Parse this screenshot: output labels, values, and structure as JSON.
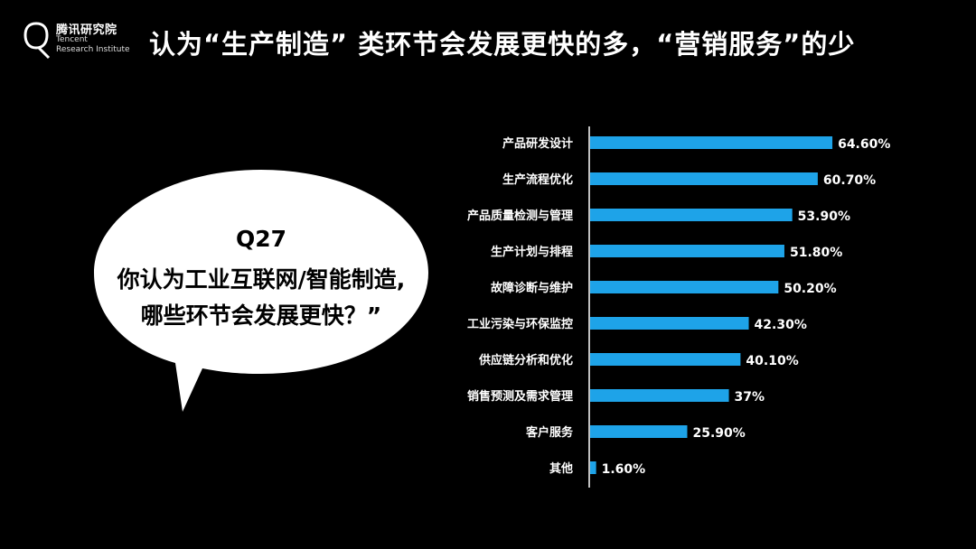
{
  "brand": {
    "name_cn": "腾讯研究院",
    "name_en_line1": "Tencent",
    "name_en_line2": "Research Institute"
  },
  "title": "认为“生产制造” 类环节会发展更快的多，“营销服务”的少",
  "question": {
    "id": "Q27",
    "line1": "你认为工业互联网/智能制造,",
    "line2": "哪些环节会发展更快？”"
  },
  "colors": {
    "background": "#000000",
    "bar": "#1ea3e8",
    "text": "#ffffff",
    "bubble": "#ffffff"
  },
  "chart_data": {
    "type": "bar",
    "orientation": "horizontal",
    "categories": [
      "产品研发设计",
      "生产流程优化",
      "产品质量检测与管理",
      "生产计划与排程",
      "故障诊断与维护",
      "工业污染与环保监控",
      "供应链分析和优化",
      "销售预测及需求管理",
      "客户服务",
      "其他"
    ],
    "values": [
      64.6,
      60.7,
      53.9,
      51.8,
      50.2,
      42.3,
      40.1,
      37,
      25.9,
      1.6
    ],
    "value_labels": [
      "64.60%",
      "60.70%",
      "53.90%",
      "51.80%",
      "50.20%",
      "42.30%",
      "40.10%",
      "37%",
      "25.90%",
      "1.60%"
    ],
    "xlim": [
      0,
      100
    ],
    "grid": false,
    "legend": "none"
  }
}
